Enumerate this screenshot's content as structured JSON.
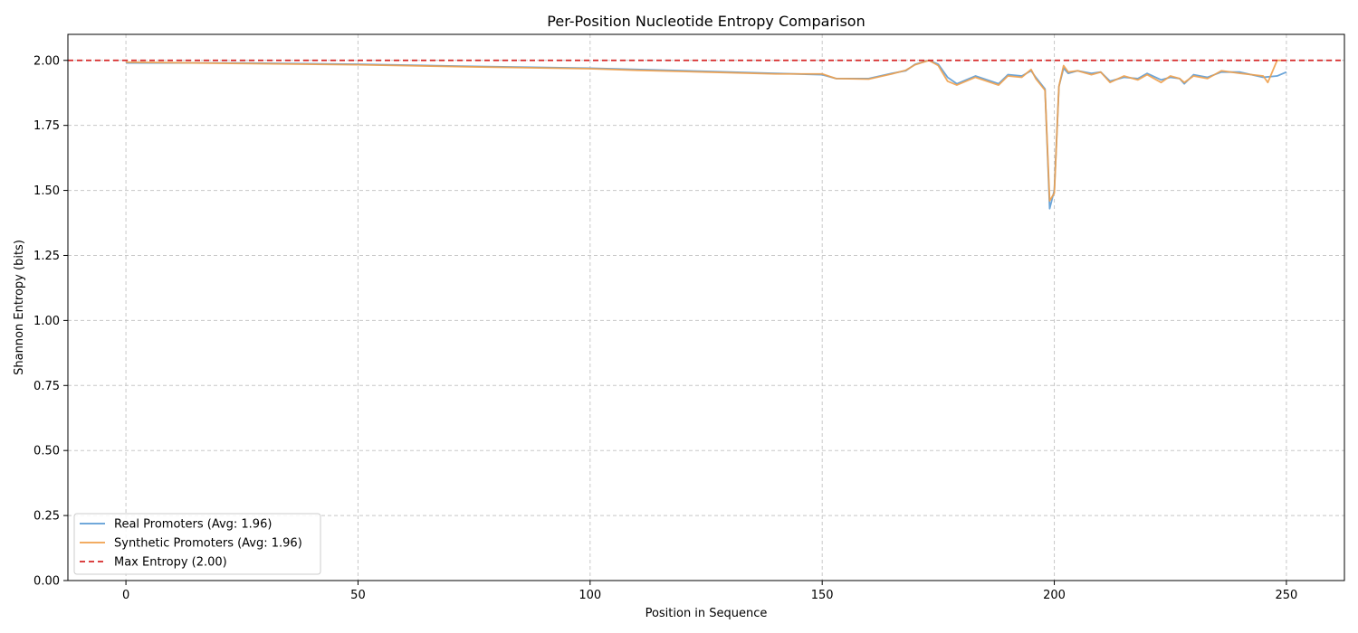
{
  "chart_data": {
    "type": "line",
    "title": "Per-Position Nucleotide Entropy Comparison",
    "xlabel": "Position in Sequence",
    "ylabel": "Shannon Entropy (bits)",
    "xlim": [
      -12.5,
      262.5
    ],
    "ylim": [
      0,
      2.1
    ],
    "xticks": [
      0,
      50,
      100,
      150,
      200,
      250
    ],
    "yticks": [
      0.0,
      0.25,
      0.5,
      0.75,
      1.0,
      1.25,
      1.5,
      1.75,
      2.0
    ],
    "ytick_labels": [
      "0.00",
      "0.25",
      "0.50",
      "0.75",
      "1.00",
      "1.25",
      "1.50",
      "1.75",
      "2.00"
    ],
    "grid": true,
    "legend_position": "bottom-left",
    "series": [
      {
        "name": "Real Promoters (Avg: 1.96)",
        "color": "#5b9bd5",
        "style": "solid",
        "points": [
          [
            0,
            1.99
          ],
          [
            25,
            1.99
          ],
          [
            50,
            1.985
          ],
          [
            75,
            1.977
          ],
          [
            100,
            1.97
          ],
          [
            110,
            1.965
          ],
          [
            125,
            1.958
          ],
          [
            140,
            1.95
          ],
          [
            150,
            1.945
          ],
          [
            153,
            1.93
          ],
          [
            160,
            1.93
          ],
          [
            165,
            1.95
          ],
          [
            168,
            1.96
          ],
          [
            170,
            1.985
          ],
          [
            173,
            2.0
          ],
          [
            175,
            1.985
          ],
          [
            177,
            1.935
          ],
          [
            179,
            1.91
          ],
          [
            183,
            1.94
          ],
          [
            188,
            1.91
          ],
          [
            190,
            1.945
          ],
          [
            193,
            1.94
          ],
          [
            195,
            1.96
          ],
          [
            196,
            1.935
          ],
          [
            198,
            1.89
          ],
          [
            199,
            1.43
          ],
          [
            200,
            1.5
          ],
          [
            201,
            1.9
          ],
          [
            202,
            1.97
          ],
          [
            203,
            1.95
          ],
          [
            205,
            1.96
          ],
          [
            208,
            1.95
          ],
          [
            210,
            1.955
          ],
          [
            212,
            1.92
          ],
          [
            215,
            1.935
          ],
          [
            218,
            1.93
          ],
          [
            220,
            1.95
          ],
          [
            223,
            1.925
          ],
          [
            225,
            1.935
          ],
          [
            227,
            1.93
          ],
          [
            228,
            1.91
          ],
          [
            230,
            1.945
          ],
          [
            233,
            1.935
          ],
          [
            236,
            1.955
          ],
          [
            240,
            1.955
          ],
          [
            245,
            1.935
          ],
          [
            248,
            1.94
          ],
          [
            250,
            1.955
          ]
        ]
      },
      {
        "name": "Synthetic Promoters (Avg: 1.96)",
        "color": "#f0a04b",
        "style": "solid",
        "points": [
          [
            0,
            1.993
          ],
          [
            25,
            1.988
          ],
          [
            50,
            1.983
          ],
          [
            75,
            1.975
          ],
          [
            100,
            1.968
          ],
          [
            110,
            1.962
          ],
          [
            125,
            1.955
          ],
          [
            140,
            1.948
          ],
          [
            150,
            1.948
          ],
          [
            153,
            1.93
          ],
          [
            160,
            1.928
          ],
          [
            165,
            1.948
          ],
          [
            168,
            1.962
          ],
          [
            170,
            1.983
          ],
          [
            173,
            2.0
          ],
          [
            175,
            1.98
          ],
          [
            177,
            1.92
          ],
          [
            179,
            1.905
          ],
          [
            183,
            1.935
          ],
          [
            188,
            1.905
          ],
          [
            190,
            1.94
          ],
          [
            193,
            1.935
          ],
          [
            195,
            1.965
          ],
          [
            196,
            1.93
          ],
          [
            198,
            1.885
          ],
          [
            199,
            1.46
          ],
          [
            200,
            1.49
          ],
          [
            201,
            1.9
          ],
          [
            202,
            1.98
          ],
          [
            203,
            1.955
          ],
          [
            205,
            1.96
          ],
          [
            208,
            1.945
          ],
          [
            210,
            1.955
          ],
          [
            212,
            1.915
          ],
          [
            215,
            1.94
          ],
          [
            218,
            1.925
          ],
          [
            220,
            1.945
          ],
          [
            223,
            1.915
          ],
          [
            225,
            1.94
          ],
          [
            227,
            1.93
          ],
          [
            228,
            1.915
          ],
          [
            230,
            1.94
          ],
          [
            233,
            1.93
          ],
          [
            236,
            1.96
          ],
          [
            240,
            1.95
          ],
          [
            245,
            1.94
          ],
          [
            246,
            1.915
          ],
          [
            248,
            2.0
          ],
          [
            250,
            2.0
          ]
        ]
      },
      {
        "name": "Max Entropy (2.00)",
        "color": "#d62728",
        "style": "dashed",
        "hline": 2.0
      }
    ]
  }
}
